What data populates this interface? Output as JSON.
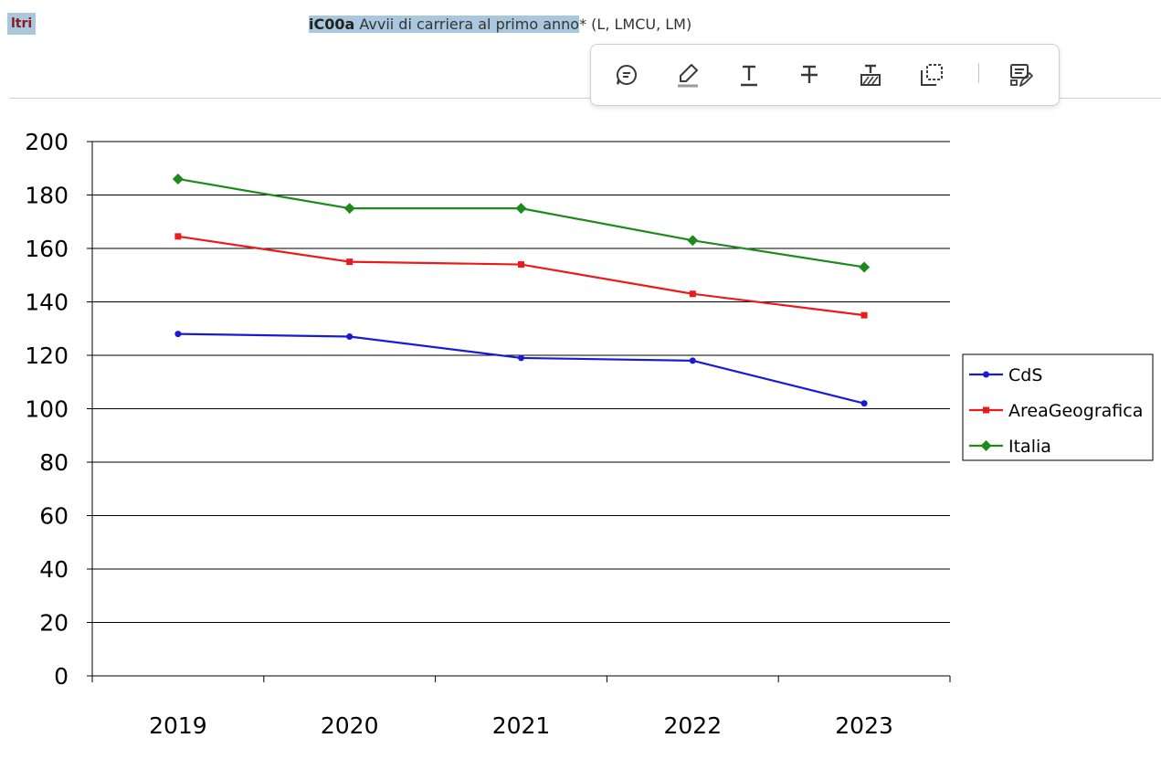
{
  "header": {
    "tag": "ltri",
    "title_code": "iC00a",
    "title_text": " Avvii di carriera al primo anno",
    "title_suffix": "* (L, LMCU, LM)"
  },
  "toolbar": {
    "buttons": [
      {
        "name": "comment-button",
        "icon": "comment-icon"
      },
      {
        "name": "highlight-button",
        "icon": "highlighter-icon"
      },
      {
        "name": "underline-button",
        "icon": "underline-icon"
      },
      {
        "name": "strikethrough-button",
        "icon": "strikethrough-icon"
      },
      {
        "name": "replace-text-button",
        "icon": "replace-text-icon"
      },
      {
        "name": "area-select-button",
        "icon": "area-select-icon"
      },
      {
        "name": "edit-notes-button",
        "icon": "edit-notes-icon"
      }
    ]
  },
  "chart_data": {
    "type": "line",
    "categories": [
      "2019",
      "2020",
      "2021",
      "2022",
      "2023"
    ],
    "ylim": [
      0,
      200
    ],
    "yticks": [
      0,
      20,
      40,
      60,
      80,
      100,
      120,
      140,
      160,
      180,
      200
    ],
    "grid": true,
    "legend_position": "right",
    "series": [
      {
        "name": "CdS",
        "color": "#1a1ad6",
        "marker": "circle",
        "values": [
          128,
          127,
          119,
          118,
          102
        ]
      },
      {
        "name": "AreaGeografica",
        "color": "#e81c1c",
        "marker": "square",
        "values": [
          164.5,
          155,
          154,
          143,
          135
        ]
      },
      {
        "name": "Italia",
        "color": "#1d8a1d",
        "marker": "diamond",
        "values": [
          186,
          175,
          175,
          163,
          153
        ]
      }
    ]
  }
}
